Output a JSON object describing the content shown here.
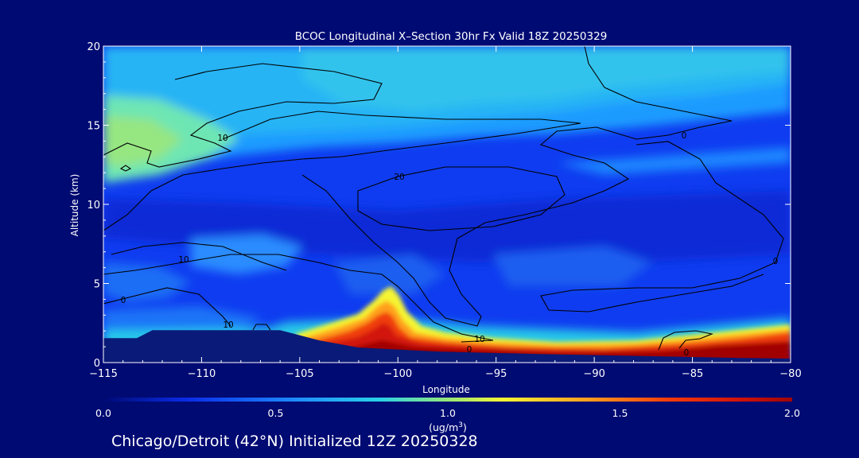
{
  "chart_data": {
    "type": "heatmap",
    "title": "BCOC Longitudinal X–Section 30hr  Fx Valid 18Z 20250329",
    "xlabel": "Longitude",
    "ylabel": "Altitude (km)",
    "xlim": [
      -115,
      -80
    ],
    "ylim": [
      0,
      20
    ],
    "x_ticks": [
      -115,
      -110,
      -105,
      -100,
      -95,
      -90,
      -85,
      -80
    ],
    "x_tick_labels": [
      "−115",
      "−110",
      "−105",
      "−100",
      "−95",
      "−90",
      "−85",
      "−80"
    ],
    "y_ticks": [
      0,
      5,
      10,
      15,
      20
    ],
    "y_tick_labels": [
      "0",
      "5",
      "10",
      "15",
      "20"
    ],
    "colorbar": {
      "min": 0.0,
      "max": 2.0,
      "ticks": [
        0.0,
        0.5,
        1.0,
        1.5,
        2.0
      ],
      "tick_labels": [
        "0.0",
        "0.5",
        "1.0",
        "1.5",
        "2.0"
      ],
      "units": "(ug/m",
      "units_sup": "3",
      "units_close": ")"
    },
    "contour_labels": [
      "10",
      "10",
      "20",
      "0",
      "0",
      "10",
      "0",
      "10",
      "0",
      "0"
    ],
    "terrain": [
      {
        "lon": -115,
        "alt": 1.55
      },
      {
        "lon": -113.3,
        "alt": 1.55
      },
      {
        "lon": -112.5,
        "alt": 2.05
      },
      {
        "lon": -106,
        "alt": 2.05
      },
      {
        "lon": -104,
        "alt": 1.4
      },
      {
        "lon": -102,
        "alt": 0.95
      },
      {
        "lon": -98,
        "alt": 0.7
      },
      {
        "lon": -93,
        "alt": 0.55
      },
      {
        "lon": -87,
        "alt": 0.4
      },
      {
        "lon": -83,
        "alt": 0.3
      },
      {
        "lon": -80,
        "alt": 0.25
      }
    ],
    "notable_features": [
      {
        "desc": "BC/OC maximum (>2.0) near surface east of the Rockies",
        "lon": -101,
        "alt": 1.2
      },
      {
        "desc": "Plume peak",
        "lon": -101,
        "alt": 3.5
      },
      {
        "desc": "Elevated concentrations (~0.8) upper left",
        "lon": -114,
        "alt": 14
      }
    ]
  },
  "footer": "Chicago/Detroit (42°N) Initialized 12Z 20250328"
}
